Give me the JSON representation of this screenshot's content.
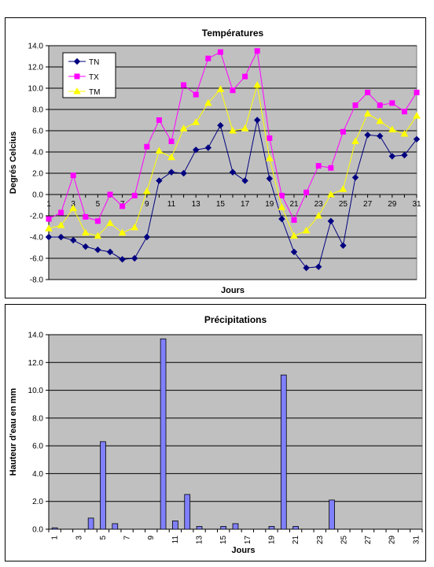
{
  "chart_data": [
    {
      "type": "line",
      "title": "Températures",
      "xlabel": "Jours",
      "ylabel": "Degrés Celcius",
      "ylim": [
        -8,
        14
      ],
      "ytick_step": 2,
      "yticks": [
        "14.0",
        "12.0",
        "10.0",
        "8.0",
        "6.0",
        "4.0",
        "2.0",
        "0.0",
        "-2.0",
        "-4.0",
        "-6.0",
        "-8.0"
      ],
      "x": [
        1,
        2,
        3,
        4,
        5,
        6,
        7,
        8,
        9,
        10,
        11,
        12,
        13,
        14,
        15,
        16,
        17,
        18,
        19,
        20,
        21,
        22,
        23,
        24,
        25,
        26,
        27,
        28,
        29,
        30,
        31
      ],
      "xticks": [
        "1",
        "3",
        "5",
        "7",
        "9",
        "11",
        "13",
        "15",
        "17",
        "19",
        "21",
        "23",
        "25",
        "27",
        "29",
        "31"
      ],
      "grid": true,
      "legend": "top-left",
      "plot_bg": "#c0c0c0",
      "series": [
        {
          "name": "TN",
          "color": "#000080",
          "marker": "diamond",
          "values": [
            -4.0,
            -4.0,
            -4.3,
            -4.9,
            -5.2,
            -5.4,
            -6.1,
            -6.0,
            -4.0,
            1.3,
            2.1,
            2.0,
            4.2,
            4.4,
            6.5,
            2.1,
            1.3,
            7.0,
            1.5,
            -2.3,
            -5.4,
            -6.9,
            -6.8,
            -2.5,
            -4.8,
            1.6,
            5.6,
            5.5,
            3.6,
            3.7,
            5.2
          ]
        },
        {
          "name": "TX",
          "color": "#ff00ff",
          "marker": "square",
          "values": [
            -2.3,
            -1.7,
            1.8,
            -2.1,
            -2.5,
            0.0,
            -1.1,
            -0.1,
            4.5,
            7.0,
            5.0,
            10.3,
            9.4,
            12.8,
            13.4,
            9.8,
            11.1,
            13.5,
            5.3,
            -0.1,
            -2.4,
            0.2,
            2.7,
            2.5,
            5.9,
            8.4,
            9.6,
            8.4,
            8.6,
            7.8,
            9.6
          ]
        },
        {
          "name": "TM",
          "color": "#ffff00",
          "marker": "triangle",
          "values": [
            -3.2,
            -2.9,
            -1.3,
            -3.6,
            -3.9,
            -2.7,
            -3.6,
            -3.1,
            0.3,
            4.1,
            3.5,
            6.2,
            6.8,
            8.6,
            9.9,
            6.0,
            6.2,
            10.3,
            3.4,
            -1.2,
            -3.9,
            -3.4,
            -2.0,
            0.0,
            0.5,
            5.0,
            7.6,
            6.9,
            6.1,
            5.7,
            7.4
          ]
        }
      ]
    },
    {
      "type": "bar",
      "title": "Précipitations",
      "xlabel": "Jours",
      "ylabel": "Hauteur d'eau en mm",
      "ylim": [
        0,
        14
      ],
      "ytick_step": 2,
      "yticks": [
        "14.0",
        "12.0",
        "10.0",
        "8.0",
        "6.0",
        "4.0",
        "2.0",
        "0.0"
      ],
      "categories": [
        1,
        2,
        3,
        4,
        5,
        6,
        7,
        8,
        9,
        10,
        11,
        12,
        13,
        14,
        15,
        16,
        17,
        18,
        19,
        20,
        21,
        22,
        23,
        24,
        25,
        26,
        27,
        28,
        29,
        30,
        31
      ],
      "xticks": [
        "1",
        "3",
        "5",
        "7",
        "9",
        "11",
        "13",
        "15",
        "17",
        "19",
        "21",
        "23",
        "25",
        "27",
        "29",
        "31"
      ],
      "grid": true,
      "plot_bg": "#c0c0c0",
      "bar_color": "#8080ff",
      "values": [
        0.1,
        0,
        0,
        0.8,
        6.3,
        0.4,
        0,
        0,
        0,
        13.7,
        0.6,
        2.5,
        0.2,
        0,
        0.2,
        0.4,
        0,
        0,
        0.2,
        11.1,
        0.2,
        0,
        0,
        2.1,
        0,
        0,
        0,
        0,
        0,
        0,
        0
      ]
    }
  ]
}
